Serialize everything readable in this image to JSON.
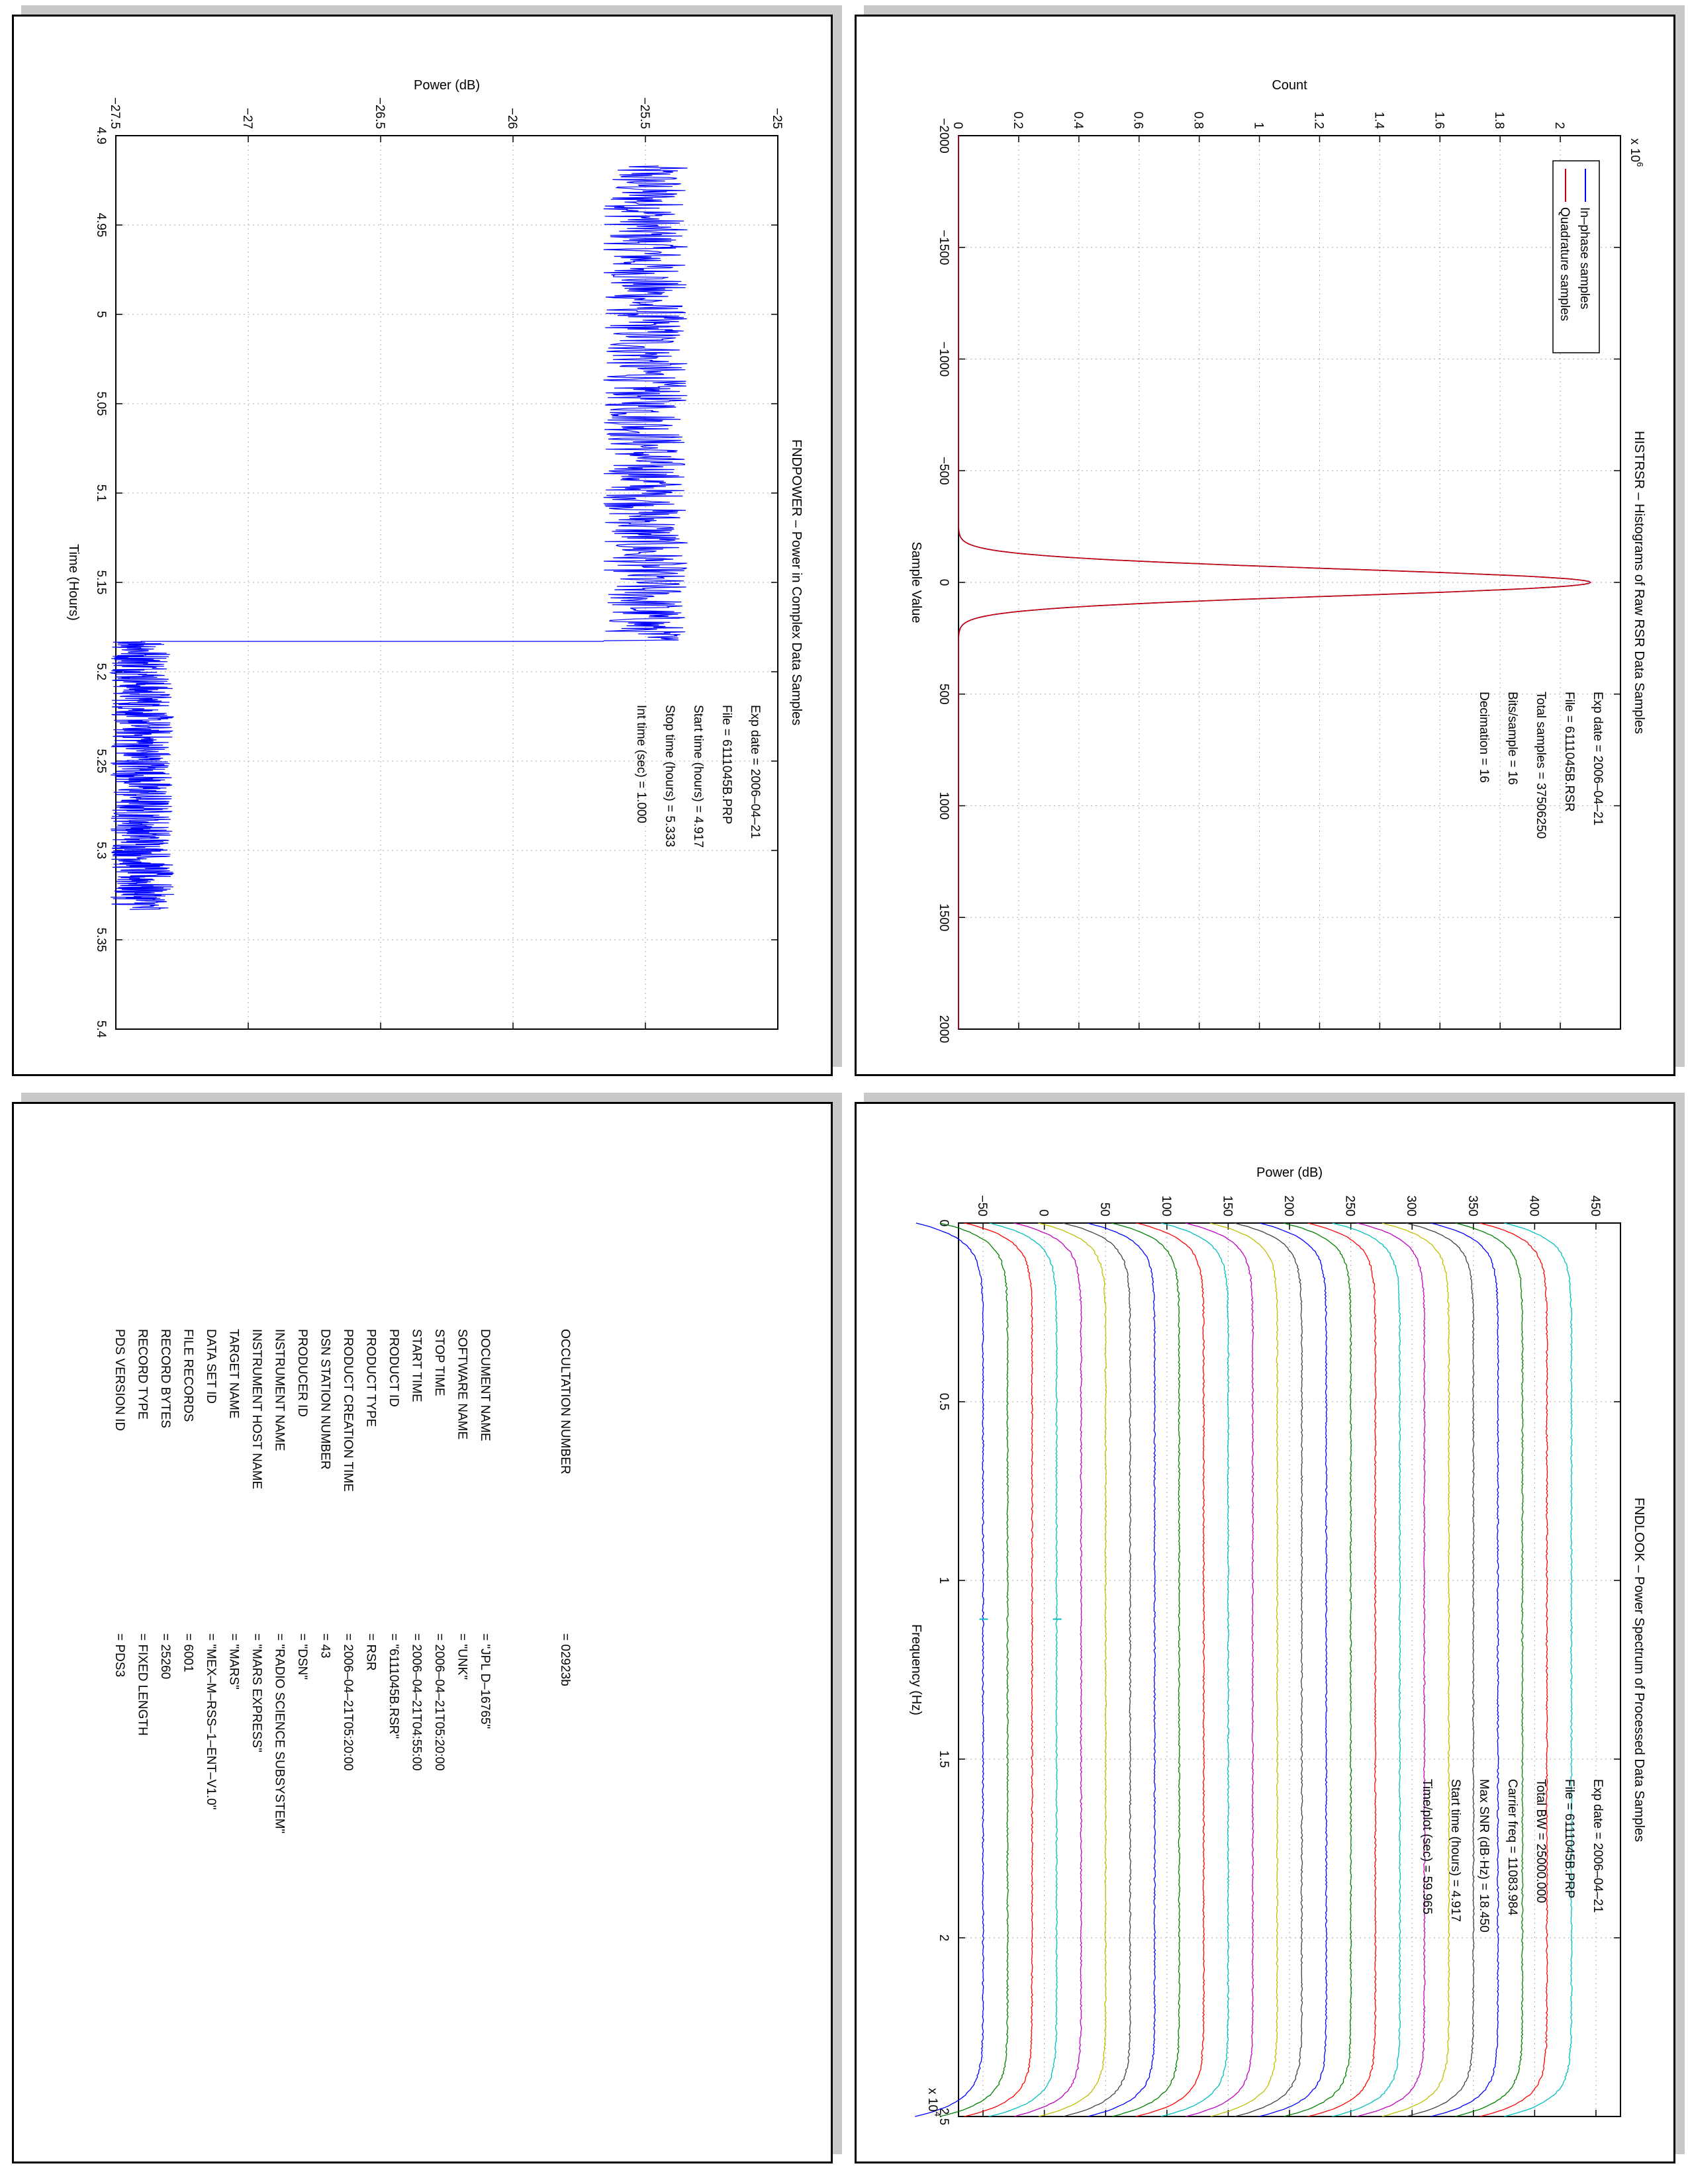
{
  "charts": {
    "fndpower": {
      "title": "FNDPOWER – Power in Complex Data Samples",
      "xlabel": "Time (Hours)",
      "ylabel": "Power (dB)",
      "info": [
        "Exp date = 2006–04–21",
        "File = 6111045B.PRP",
        "Start time (hours) = 4.917",
        "Stop time (hours) =  5.333",
        "Int time (sec) =    1.000"
      ]
    },
    "histrsr": {
      "title": "HISTRSR – Histograms of Raw RSR Data Samples",
      "xlabel": "Sample Value",
      "ylabel": "Count",
      "exponent_label": "x 10",
      "exponent_power": "6",
      "info": [
        "Exp date = 2006–04–21",
        "File = 6111045B.RSR",
        "Total samples =  37506250",
        "Bits/sample  =      16",
        "Decimation  =      16"
      ]
    },
    "fndlook": {
      "title": "FNDLOOK – Power Spectrum of Processed Data Samples",
      "xlabel": "Frequency (Hz)",
      "ylabel": "Power (dB)",
      "exponent_label": "x 10",
      "exponent_power": "4",
      "info": [
        "Exp date = 2006–04–21",
        "File = 6111045B.PRP",
        "Total BW =   25000.000",
        "Carrier freq =  11083.984",
        "Max SNR (dB·Hz) =   18.450",
        "Start time (hours) =   4.917",
        "Time/plot (sec) =   59.965"
      ]
    }
  },
  "chart_data": [
    {
      "type": "line",
      "title": "FNDPOWER – Power in Complex Data Samples",
      "xlabel": "Time (Hours)",
      "ylabel": "Power (dB)",
      "xlim": [
        4.9,
        5.4
      ],
      "ylim": [
        -27.5,
        -25
      ],
      "xticks": [
        "4.9",
        "4.95",
        "5",
        "5.05",
        "5.1",
        "5.15",
        "5.2",
        "5.25",
        "5.3",
        "5.35",
        "5.4"
      ],
      "yticks": [
        "−27.5",
        "−27",
        "−26.5",
        "−26",
        "−25.5",
        "−25"
      ],
      "grid": true,
      "series": [
        {
          "color": "#0000ff",
          "segments": [
            {
              "x": [
                4.917,
                5.183
              ],
              "mean": -25.5,
              "noise": 0.08
            },
            {
              "x": [
                5.183,
                5.333
              ],
              "mean": -27.4,
              "noise": 0.06
            }
          ]
        }
      ]
    },
    {
      "type": "line",
      "title": "HISTRSR – Histograms of Raw RSR Data Samples",
      "xlabel": "Sample Value",
      "ylabel": "Count",
      "xlim": [
        -2000,
        2000
      ],
      "ylim": [
        0,
        2200000
      ],
      "xticks": [
        "−2000",
        "−1500",
        "−1000",
        "−500",
        "0",
        "500",
        "1000",
        "1500",
        "2000"
      ],
      "yticks": [
        "0",
        "0.2",
        "0.4",
        "0.6",
        "0.8",
        "1",
        "1.2",
        "1.4",
        "1.6",
        "1.8",
        "2"
      ],
      "grid": true,
      "legend": "top-right",
      "series": [
        {
          "name": "In–phase samples",
          "color": "#0000ff",
          "peak_x": 0,
          "peak_y": 2100000,
          "sigma": 60
        },
        {
          "name": "Quadrature samples",
          "color": "#cc0000",
          "peak_x": 0,
          "peak_y": 2100000,
          "sigma": 60
        }
      ]
    },
    {
      "type": "line",
      "title": "FNDLOOK – Power Spectrum of Processed Data Samples",
      "xlabel": "Frequency (Hz)",
      "ylabel": "Power (dB)",
      "xlim": [
        0,
        25000
      ],
      "ylim": [
        -70,
        470
      ],
      "xticks": [
        "0",
        "0.5",
        "1",
        "1.5",
        "2",
        "2.5"
      ],
      "yticks": [
        "−50",
        "0",
        "50",
        "100",
        "150",
        "200",
        "250",
        "300",
        "350",
        "400",
        "450"
      ],
      "grid": true,
      "offsets": [
        -50,
        -30,
        -10,
        10,
        30,
        50,
        70,
        90,
        110,
        130,
        150,
        170,
        190,
        210,
        230,
        250,
        270,
        290,
        310,
        330,
        350,
        370,
        390,
        410,
        430
      ],
      "rolloff_depth": 55,
      "carrier_spikes": [
        {
          "x": 11083.984,
          "offset": -50
        },
        {
          "x": 11083.984,
          "offset": 10
        }
      ],
      "colors": [
        "#0000ff",
        "#007f00",
        "#ff0000",
        "#00bfbf",
        "#bf00bf",
        "#bfbf00",
        "#404040"
      ]
    }
  ],
  "label_table": {
    "rows": [
      {
        "key": "PDS VERSION ID",
        "value": "= PDS3"
      },
      {
        "key": "RECORD TYPE",
        "value": "= FIXED LENGTH"
      },
      {
        "key": "RECORD BYTES",
        "value": "= 25260"
      },
      {
        "key": "FILE RECORDS",
        "value": "= 6001"
      },
      {
        "key": "DATA SET ID",
        "value": "= \"MEX–M–RSS–1–ENT–V1.0\""
      },
      {
        "key": "TARGET NAME",
        "value": "= \"MARS\""
      },
      {
        "key": "INSTRUMENT HOST NAME",
        "value": "= \"MARS EXPRESS\""
      },
      {
        "key": "INSTRUMENT NAME",
        "value": "= \"RADIO SCIENCE SUBSYSTEM\""
      },
      {
        "key": "PRODUCER ID",
        "value": "= \"DSN\""
      },
      {
        "key": "DSN STATION NUMBER",
        "value": "= 43"
      },
      {
        "key": "PRODUCT CREATION TIME",
        "value": "= 2006–04–21T05:20:00"
      },
      {
        "key": "PRODUCT TYPE",
        "value": "= RSR"
      },
      {
        "key": "PRODUCT ID",
        "value": "= \"6111045B.RSR\""
      },
      {
        "key": "START TIME",
        "value": "= 2006–04–21T04:55:00"
      },
      {
        "key": "STOP TIME",
        "value": "= 2006–04–21T05:20:00"
      },
      {
        "key": "SOFTWARE NAME",
        "value": "= \"UNK\""
      },
      {
        "key": "DOCUMENT NAME",
        "value": "= \"JPL D–16765\""
      }
    ],
    "occultation": {
      "key": "OCCULTATION NUMBER",
      "value": "= 02923b"
    }
  }
}
